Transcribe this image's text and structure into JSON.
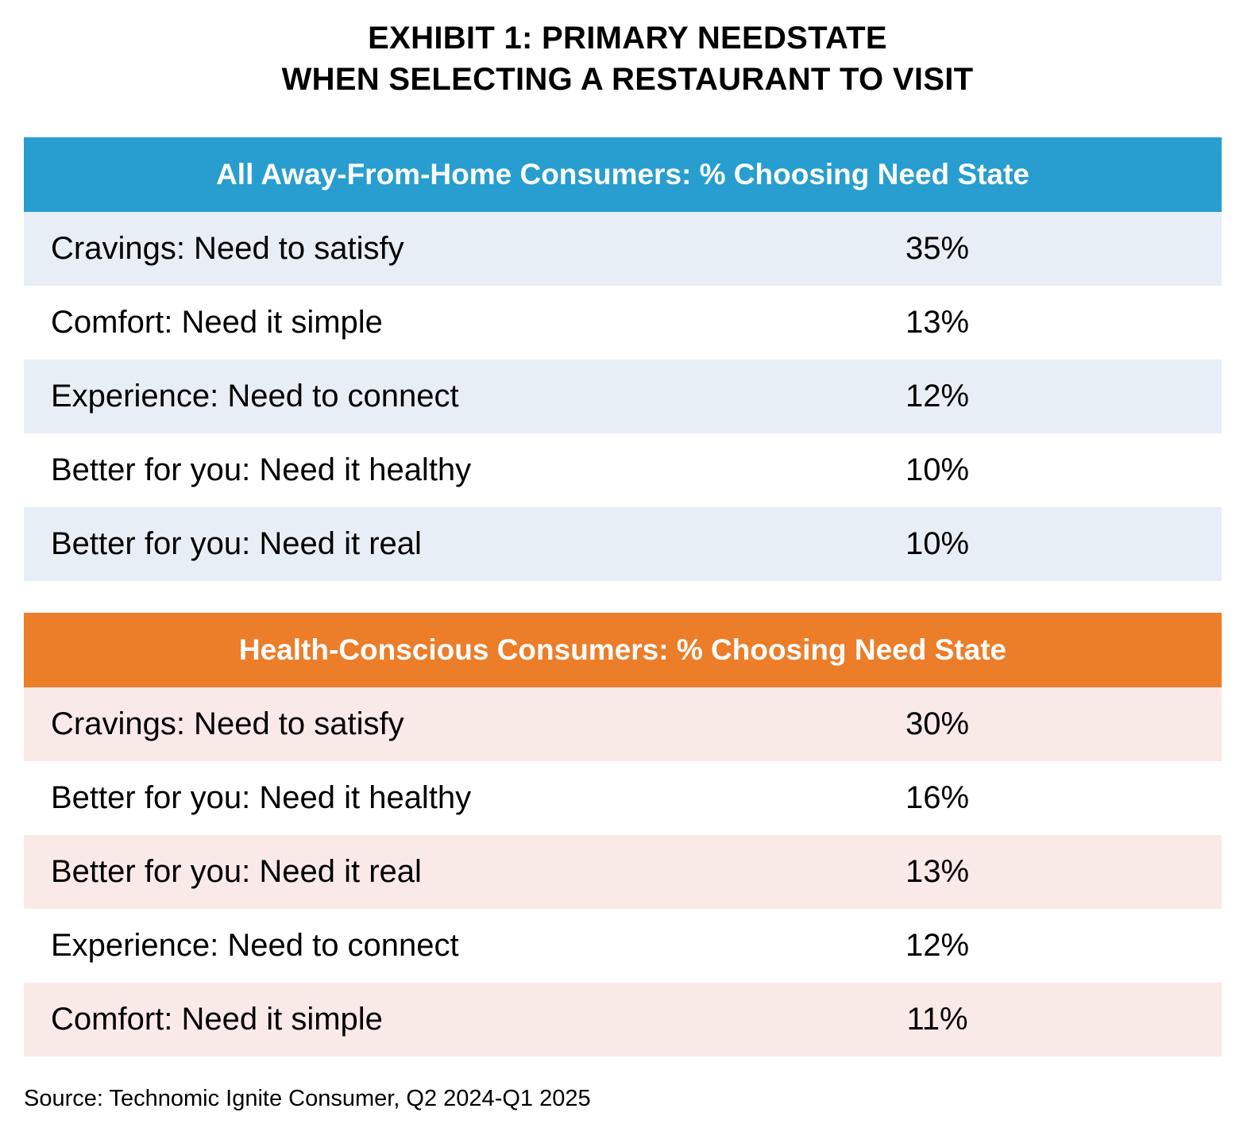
{
  "title_line1": "EXHIBIT 1: PRIMARY NEEDSTATE",
  "title_line2": "WHEN SELECTING A RESTAURANT TO VISIT",
  "colors": {
    "all_consumers_header": "#279ecf",
    "all_consumers_row_alt": "#e7eef5",
    "health_conscious_header": "#ec7d29",
    "health_conscious_row_alt": "#faeae7"
  },
  "tables": [
    {
      "header": "All Away-From-Home Consumers: % Choosing Need State",
      "rows": [
        {
          "label": "Cravings: Need to satisfy",
          "value": "35%"
        },
        {
          "label": "Comfort: Need it simple",
          "value": "13%"
        },
        {
          "label": "Experience: Need to connect",
          "value": "12%"
        },
        {
          "label": "Better for you: Need it healthy",
          "value": "10%"
        },
        {
          "label": "Better for you: Need it real",
          "value": "10%"
        }
      ]
    },
    {
      "header": "Health-Conscious Consumers: % Choosing Need State",
      "rows": [
        {
          "label": "Cravings: Need to satisfy",
          "value": "30%"
        },
        {
          "label": "Better for you: Need it healthy",
          "value": "16%"
        },
        {
          "label": "Better for you: Need it real",
          "value": "13%"
        },
        {
          "label": "Experience: Need to connect",
          "value": "12%"
        },
        {
          "label": "Comfort: Need it simple",
          "value": "11%"
        }
      ]
    }
  ],
  "source": "Source: Technomic Ignite Consumer, Q2 2024-Q1 2025",
  "chart_data": {
    "type": "table",
    "title": "EXHIBIT 1: PRIMARY NEEDSTATE WHEN SELECTING A RESTAURANT TO VISIT",
    "tables": [
      {
        "name": "All Away-From-Home Consumers: % Choosing Need State",
        "categories": [
          "Cravings: Need to satisfy",
          "Comfort: Need it simple",
          "Experience: Need to connect",
          "Better for you: Need it healthy",
          "Better for you: Need it real"
        ],
        "values": [
          35,
          13,
          12,
          10,
          10
        ],
        "unit": "%"
      },
      {
        "name": "Health-Conscious Consumers: % Choosing Need State",
        "categories": [
          "Cravings: Need to satisfy",
          "Better for you: Need it healthy",
          "Better for you: Need it real",
          "Experience: Need to connect",
          "Comfort: Need it simple"
        ],
        "values": [
          30,
          16,
          13,
          12,
          11
        ],
        "unit": "%"
      }
    ],
    "source": "Source: Technomic Ignite Consumer, Q2 2024-Q1 2025"
  }
}
